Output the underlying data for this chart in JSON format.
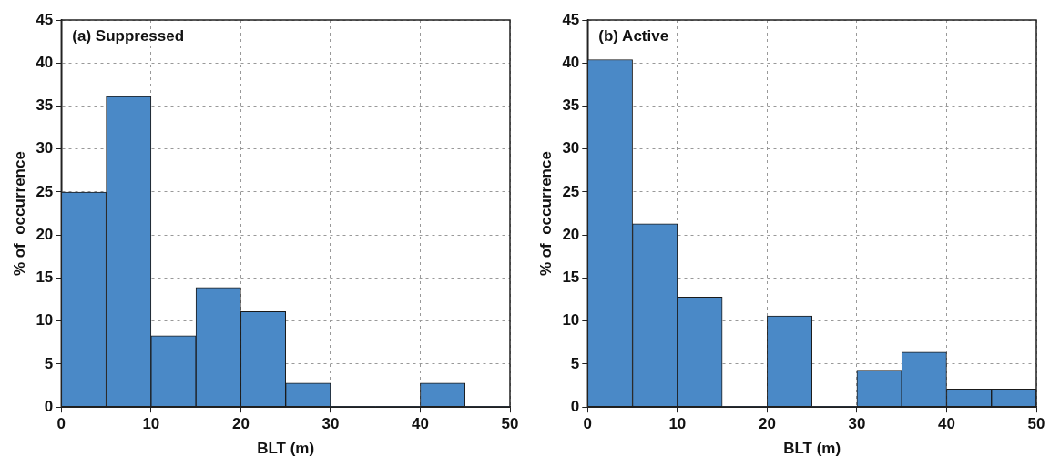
{
  "chart_data": [
    {
      "type": "histogram",
      "title": "(a) Suppressed",
      "xlabel": "BLT (m)",
      "ylabel": "% of  occurrence",
      "color": "#4a89c7",
      "bins": [
        0,
        5,
        10,
        15,
        20,
        25,
        30,
        35,
        40,
        45,
        50
      ],
      "values": [
        25,
        36.1,
        8.3,
        13.9,
        11.1,
        2.8,
        0,
        0,
        2.8,
        0
      ],
      "xlim": [
        0,
        50
      ],
      "xticks": [
        0,
        10,
        20,
        30,
        40,
        50
      ],
      "ylim": [
        0,
        45
      ],
      "yticks": [
        0,
        5,
        10,
        15,
        20,
        25,
        30,
        35,
        40,
        45
      ],
      "grid": true
    },
    {
      "type": "histogram",
      "title": "(b) Active",
      "xlabel": "BLT (m)",
      "ylabel": "% of  occurrence",
      "color": "#4a89c7",
      "bins": [
        0,
        5,
        10,
        15,
        20,
        25,
        30,
        35,
        40,
        45,
        50
      ],
      "values": [
        40.4,
        21.3,
        12.8,
        0,
        10.6,
        0,
        4.3,
        6.4,
        2.1,
        2.1
      ],
      "xlim": [
        0,
        50
      ],
      "xticks": [
        0,
        10,
        20,
        30,
        40,
        50
      ],
      "ylim": [
        0,
        45
      ],
      "yticks": [
        0,
        5,
        10,
        15,
        20,
        25,
        30,
        35,
        40,
        45
      ],
      "grid": true
    }
  ]
}
